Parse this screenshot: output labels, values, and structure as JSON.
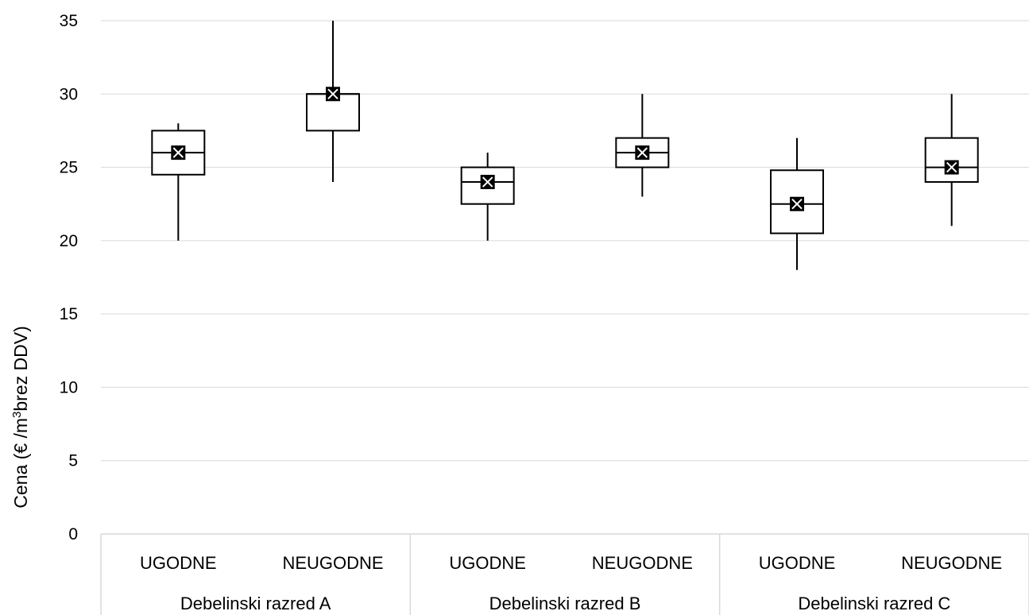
{
  "chart_data": {
    "type": "box",
    "ylabel": "Cena (€ /m³brez DDV)",
    "ylabel_parts": [
      "Cena (€ /m",
      "3",
      "brez DDV)"
    ],
    "ylim": [
      0,
      35
    ],
    "yticks": [
      0,
      5,
      10,
      15,
      20,
      25,
      30,
      35
    ],
    "gridlines": true,
    "groups": [
      "Debelinski razred A",
      "Debelinski razred B",
      "Debelinski razred C"
    ],
    "boxes": [
      {
        "group": "Debelinski razred A",
        "category": "UGODNE",
        "min": 20,
        "q1": 24.5,
        "median": 26,
        "q3": 27.5,
        "max": 28,
        "mean": 26
      },
      {
        "group": "Debelinski razred A",
        "category": "NEUGODNE",
        "min": 24,
        "q1": 27.5,
        "median": 30,
        "q3": 30,
        "max": 35,
        "mean": 30
      },
      {
        "group": "Debelinski razred B",
        "category": "UGODNE",
        "min": 20,
        "q1": 22.5,
        "median": 24,
        "q3": 25,
        "max": 26,
        "mean": 24
      },
      {
        "group": "Debelinski razred B",
        "category": "NEUGODNE",
        "min": 23,
        "q1": 25,
        "median": 26,
        "q3": 27,
        "max": 30,
        "mean": 26
      },
      {
        "group": "Debelinski razred C",
        "category": "UGODNE",
        "min": 18,
        "q1": 20.5,
        "median": 22.5,
        "q3": 24.8,
        "max": 27,
        "mean": 22.5
      },
      {
        "group": "Debelinski razred C",
        "category": "NEUGODNE",
        "min": 21,
        "q1": 24,
        "median": 25,
        "q3": 27,
        "max": 30,
        "mean": 25
      }
    ],
    "colors": {
      "grid": "#d9d9d9",
      "box_stroke": "#000000",
      "box_fill": "#ffffff",
      "mean_marker": "#000000",
      "axis_line": "#d9d9d9"
    }
  }
}
